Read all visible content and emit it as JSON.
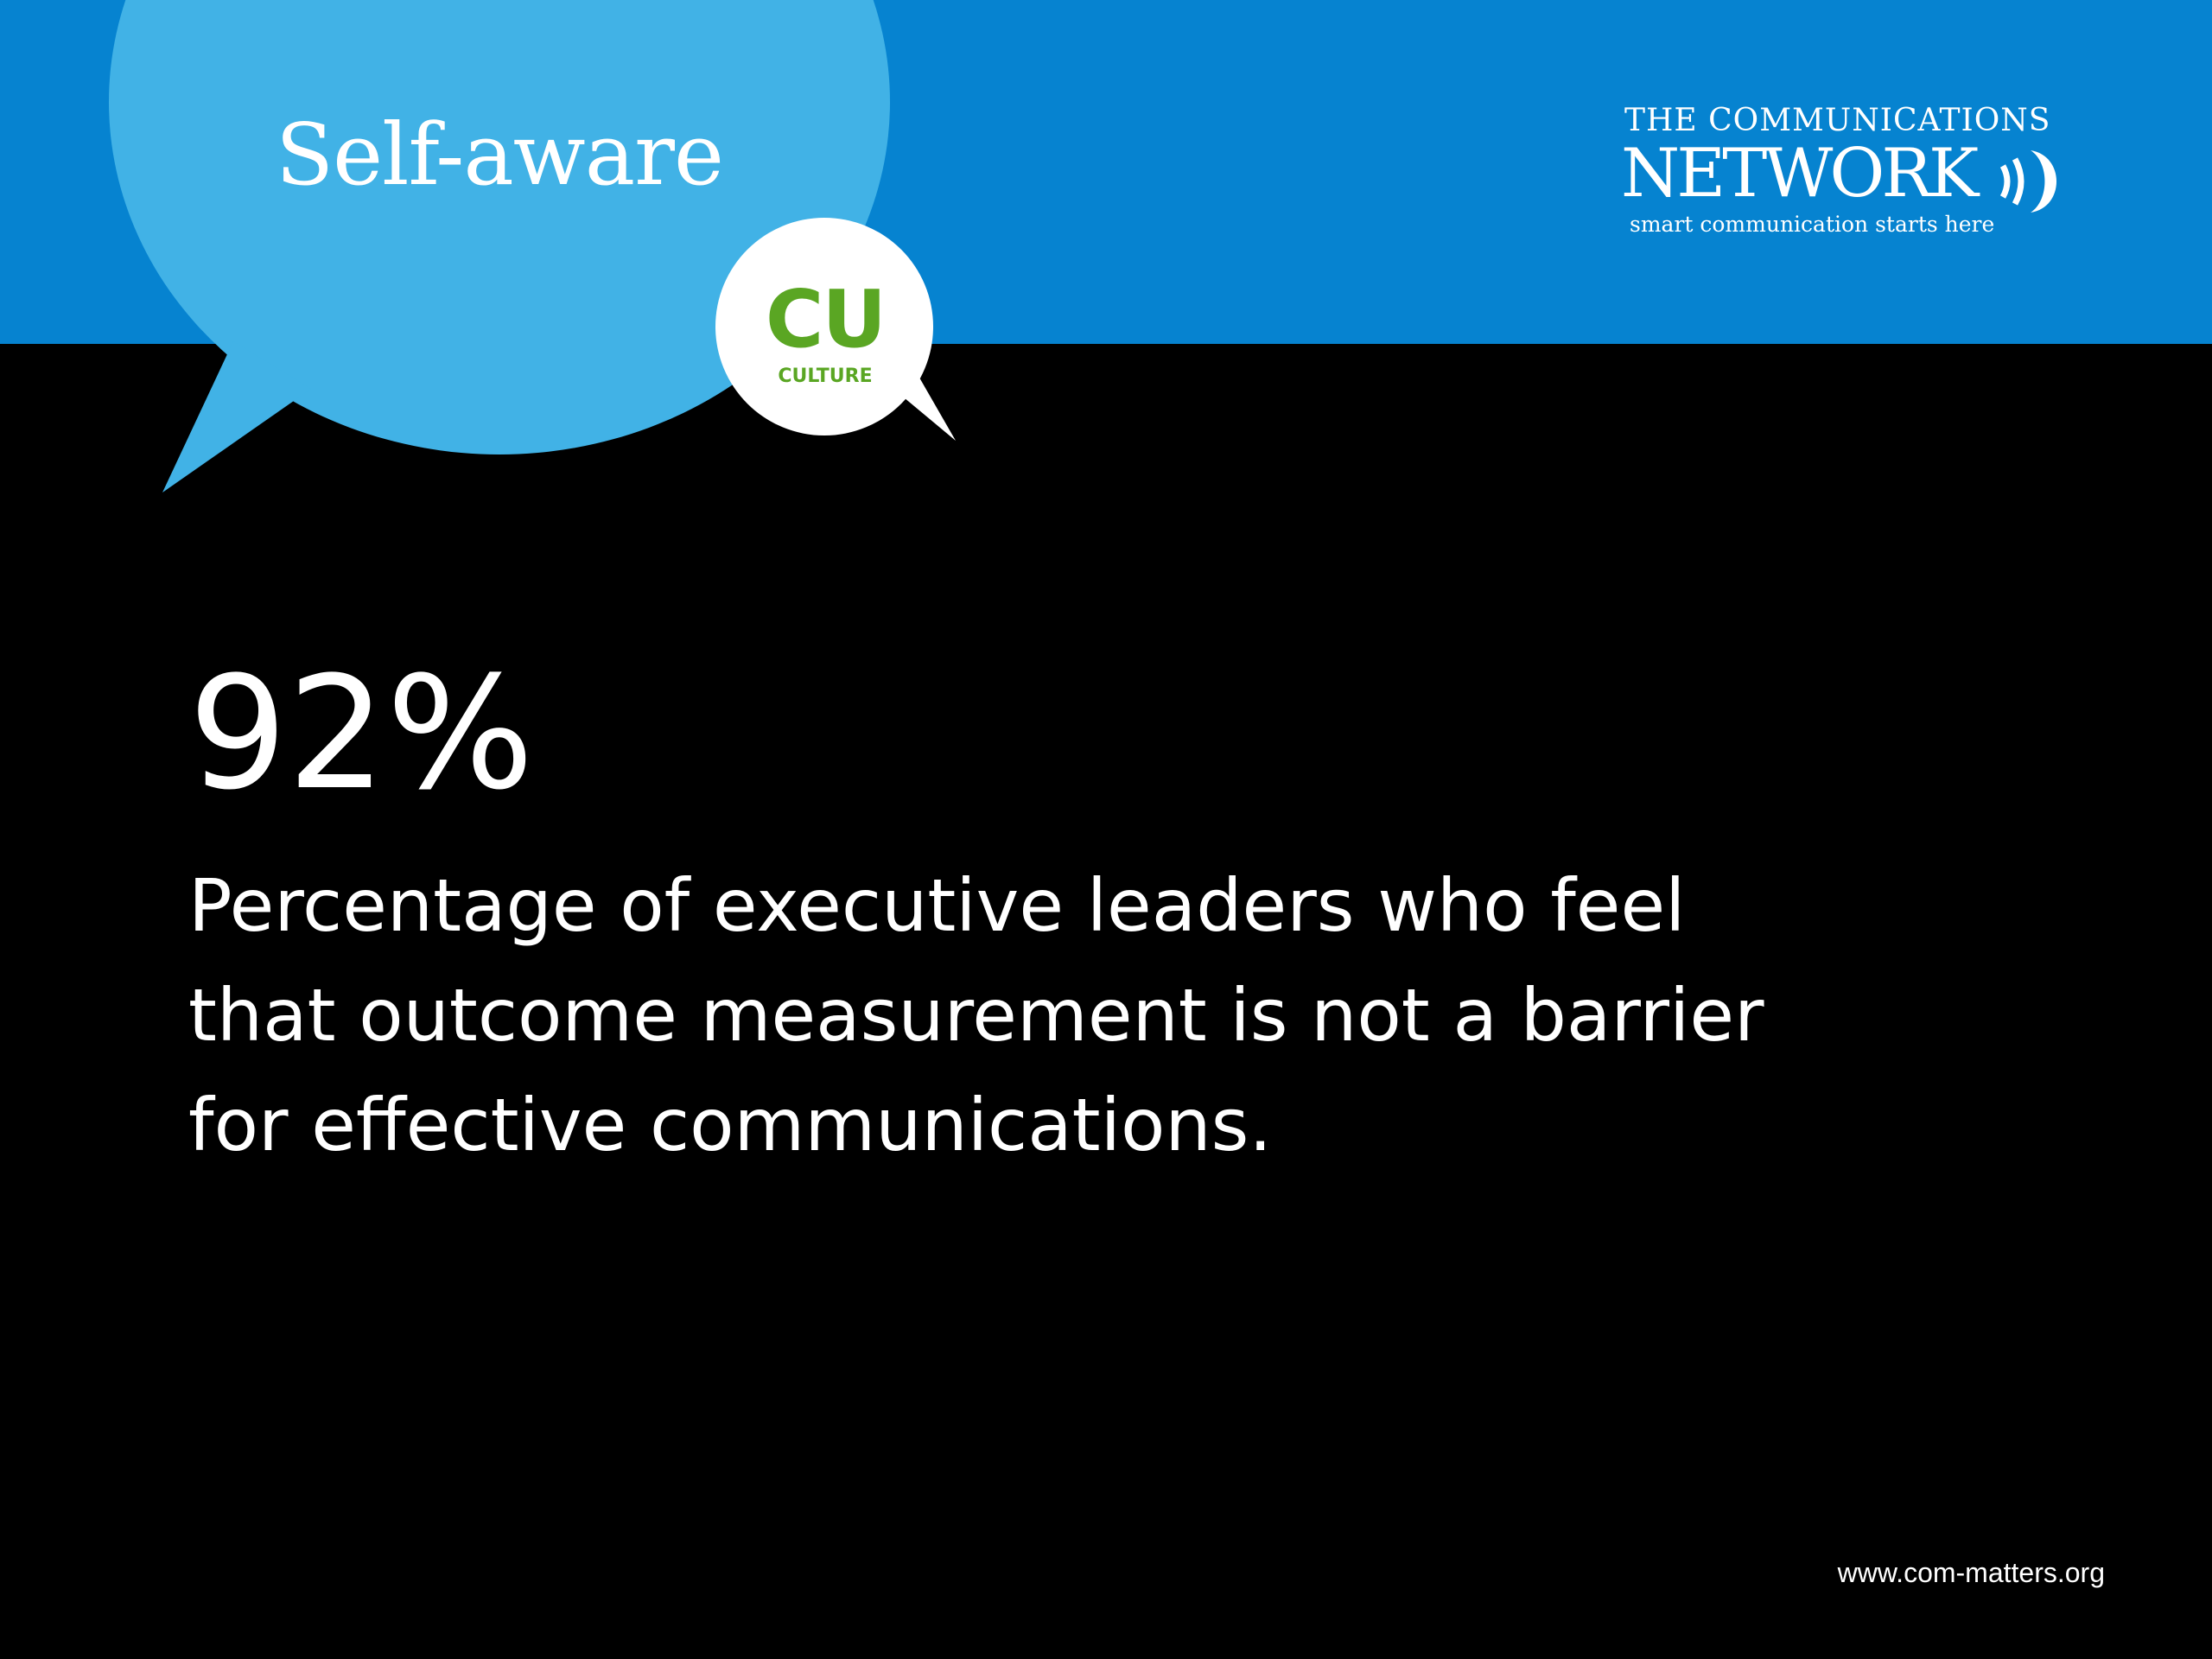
{
  "slide": {
    "title": "Self-aware",
    "badge": {
      "code": "CU",
      "label": "CULTURE"
    },
    "logo": {
      "line1": "THE COMMUNICATIONS",
      "line2": "NETWORK",
      "tagline": "smart communication starts here",
      "icon": "sound-waves-icon"
    },
    "stat": {
      "value": "92%",
      "description": "Percentage of executive leaders who feel that outcome measurement is not a barrier for effective communications."
    },
    "footer": {
      "url": "www.com-matters.org"
    },
    "colors": {
      "band_blue": "#0683d0",
      "bubble_blue": "#41b2e6",
      "badge_green": "#5aa623",
      "background": "#000000",
      "text": "#ffffff"
    }
  }
}
